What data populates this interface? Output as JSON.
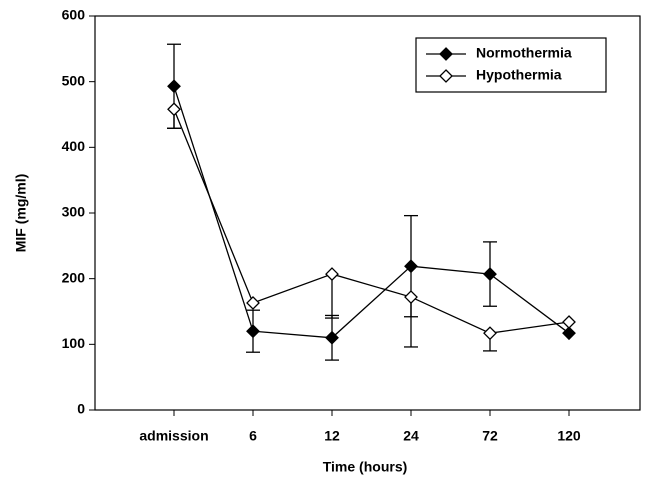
{
  "chart_data": {
    "type": "line",
    "x_label": "Time (hours)",
    "y_label": "MIF (mg/ml)",
    "categories": [
      "admission",
      "6",
      "12",
      "24",
      "72",
      "120"
    ],
    "series": [
      {
        "name": "Normothermia",
        "color": "#000000",
        "marker": "filled-diamond",
        "error_direction": "both",
        "values": [
          493,
          120,
          110,
          219,
          207,
          117
        ],
        "errors": [
          64,
          32,
          34,
          77,
          49,
          null
        ]
      },
      {
        "name": "Hypothermia",
        "color": "#000000",
        "marker": "open-diamond",
        "error_direction": "down",
        "values": [
          458,
          163,
          207,
          172,
          117,
          134
        ],
        "errors": [
          29,
          null,
          67,
          76,
          27,
          null
        ]
      }
    ],
    "ylim": [
      0,
      600
    ],
    "yticks": [
      0,
      100,
      200,
      300,
      400,
      500,
      600
    ],
    "legend": "top-right"
  }
}
